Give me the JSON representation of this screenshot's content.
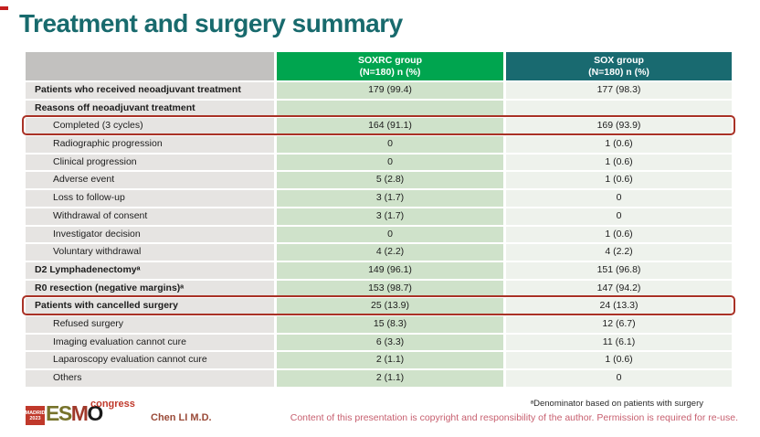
{
  "slide": {
    "title": "Treatment and surgery summary",
    "accent_color": "#186a6d",
    "highlight_border_color": "#a93226"
  },
  "table": {
    "columns": [
      {
        "label": "",
        "color": "#c2c1bf"
      },
      {
        "label": "SOXRC group",
        "sublabel": "(N=180)  n (%)",
        "color": "#00a54f"
      },
      {
        "label": "SOX group",
        "sublabel": "(N=180)  n (%)",
        "color": "#196a70"
      }
    ],
    "rows": [
      {
        "label": "Patients who received neoadjuvant treatment",
        "bold": true,
        "indent": false,
        "highlight": false,
        "soxrc": "179 (99.4)",
        "sox": "177 (98.3)"
      },
      {
        "label": "Reasons off neoadjuvant treatment",
        "bold": true,
        "indent": false,
        "highlight": false,
        "soxrc": "",
        "sox": ""
      },
      {
        "label": "Completed (3 cycles)",
        "bold": false,
        "indent": true,
        "highlight": true,
        "soxrc": "164 (91.1)",
        "sox": "169 (93.9)"
      },
      {
        "label": "Radiographic progression",
        "bold": false,
        "indent": true,
        "highlight": false,
        "soxrc": "0",
        "sox": "1 (0.6)"
      },
      {
        "label": "Clinical progression",
        "bold": false,
        "indent": true,
        "highlight": false,
        "soxrc": "0",
        "sox": "1 (0.6)"
      },
      {
        "label": "Adverse event",
        "bold": false,
        "indent": true,
        "highlight": false,
        "soxrc": "5 (2.8)",
        "sox": "1 (0.6)"
      },
      {
        "label": "Loss to follow-up",
        "bold": false,
        "indent": true,
        "highlight": false,
        "soxrc": "3 (1.7)",
        "sox": "0"
      },
      {
        "label": "Withdrawal of consent",
        "bold": false,
        "indent": true,
        "highlight": false,
        "soxrc": "3 (1.7)",
        "sox": "0"
      },
      {
        "label": "Investigator decision",
        "bold": false,
        "indent": true,
        "highlight": false,
        "soxrc": "0",
        "sox": "1 (0.6)"
      },
      {
        "label": "Voluntary withdrawal",
        "bold": false,
        "indent": true,
        "highlight": false,
        "soxrc": "4 (2.2)",
        "sox": "4 (2.2)"
      },
      {
        "label": "D2 Lymphadenectomyᵃ",
        "bold": true,
        "indent": false,
        "highlight": false,
        "soxrc": "149 (96.1)",
        "sox": "151 (96.8)"
      },
      {
        "label": "R0 resection (negative margins)ᵃ",
        "bold": true,
        "indent": false,
        "highlight": false,
        "soxrc": "153 (98.7)",
        "sox": "147 (94.2)"
      },
      {
        "label": "Patients with cancelled surgery",
        "bold": true,
        "indent": false,
        "highlight": true,
        "soxrc": "25 (13.9)",
        "sox": "24 (13.3)"
      },
      {
        "label": "Refused surgery",
        "bold": false,
        "indent": true,
        "highlight": false,
        "soxrc": "15 (8.3)",
        "sox": "12 (6.7)"
      },
      {
        "label": "Imaging evaluation cannot cure",
        "bold": false,
        "indent": true,
        "highlight": false,
        "soxrc": "6 (3.3)",
        "sox": "11 (6.1)"
      },
      {
        "label": "Laparoscopy evaluation cannot cure",
        "bold": false,
        "indent": true,
        "highlight": false,
        "soxrc": "2 (1.1)",
        "sox": "1 (0.6)"
      },
      {
        "label": "Others",
        "bold": false,
        "indent": true,
        "highlight": false,
        "soxrc": "2 (1.1)",
        "sox": "0"
      }
    ]
  },
  "footer": {
    "footnote": "ᵃDenominator based on patients with surgery",
    "copyright": "Content of this presentation is copyright and responsibility of the author.  Permission is required for re-use.",
    "author": "Chen LI M.D.",
    "logo": {
      "venue_line1": "MADRID",
      "venue_line2": "2023",
      "letters": [
        "E",
        "S",
        "M",
        "O"
      ],
      "suffix": "congress"
    }
  }
}
